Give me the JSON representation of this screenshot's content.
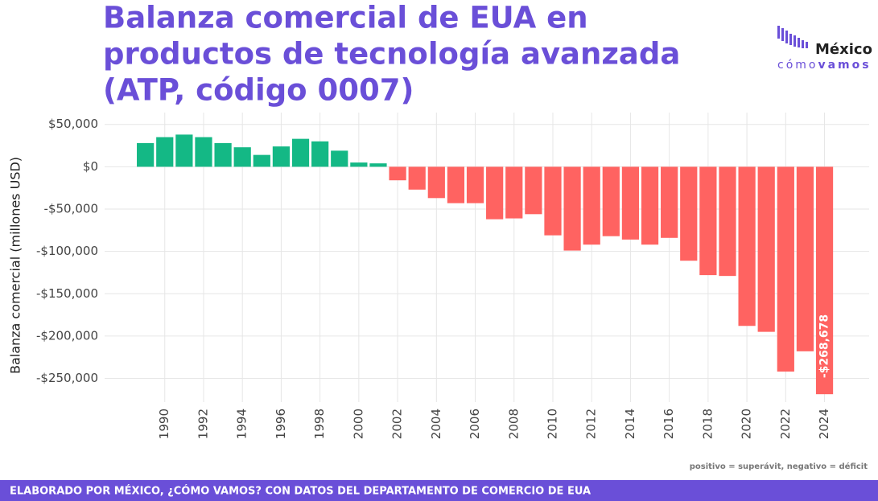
{
  "chart_data": {
    "type": "bar",
    "title": [
      "Balanza comercial de EUA en",
      "productos de tecnología avanzada",
      "(ATP, código 0007)"
    ],
    "y_label": "Balanza comercial (millones USD)",
    "note": "positivo = superávit, negativo = déficit",
    "footer": "ELABORADO POR MÉXICO, ¿CÓMO VAMOS? CON DATOS DEL DEPARTAMENTO DE COMERCIO DE EUA",
    "logo": [
      "México",
      "cómo",
      "vamos"
    ],
    "x": [
      1989,
      1990,
      1991,
      1992,
      1993,
      1994,
      1995,
      1996,
      1997,
      1998,
      1999,
      2000,
      2001,
      2002,
      2003,
      2004,
      2005,
      2006,
      2007,
      2008,
      2009,
      2010,
      2011,
      2012,
      2013,
      2014,
      2015,
      2016,
      2017,
      2018,
      2019,
      2020,
      2021,
      2022,
      2023,
      2024
    ],
    "values": [
      28000,
      35000,
      38000,
      35000,
      28000,
      23000,
      14000,
      24000,
      33000,
      30000,
      19000,
      5000,
      4000,
      -16000,
      -27000,
      -37000,
      -43000,
      -43000,
      -62000,
      -61000,
      -56000,
      -81000,
      -99000,
      -92000,
      -82000,
      -86000,
      -92000,
      -84000,
      -111000,
      -128000,
      -129000,
      -188000,
      -195000,
      -242000,
      -218000,
      -268678
    ],
    "value_labels": [
      null,
      null,
      null,
      null,
      null,
      null,
      null,
      null,
      null,
      null,
      null,
      null,
      null,
      null,
      null,
      null,
      null,
      null,
      null,
      null,
      null,
      null,
      null,
      null,
      null,
      null,
      null,
      null,
      null,
      null,
      null,
      null,
      null,
      null,
      null,
      "-$268,678"
    ],
    "positive_color": "#14b885",
    "negative_color": "#ff6361",
    "xlim": [
      1986.9,
      2026.3
    ],
    "xticks": [
      1990,
      1992,
      1994,
      1996,
      1998,
      2000,
      2002,
      2004,
      2006,
      2008,
      2010,
      2012,
      2014,
      2016,
      2018,
      2020,
      2022,
      2024
    ],
    "ylim": [
      -278000,
      64000
    ],
    "yticks": [
      {
        "value": 50000,
        "label": "$50,000"
      },
      {
        "value": 0,
        "label": "$0"
      },
      {
        "value": -50000,
        "label": "-$50,000"
      },
      {
        "value": -100000,
        "label": "-$100,000"
      },
      {
        "value": -150000,
        "label": "-$150,000"
      },
      {
        "value": -200000,
        "label": "-$200,000"
      },
      {
        "value": -250000,
        "label": "-$250,000"
      }
    ],
    "grid": true
  }
}
